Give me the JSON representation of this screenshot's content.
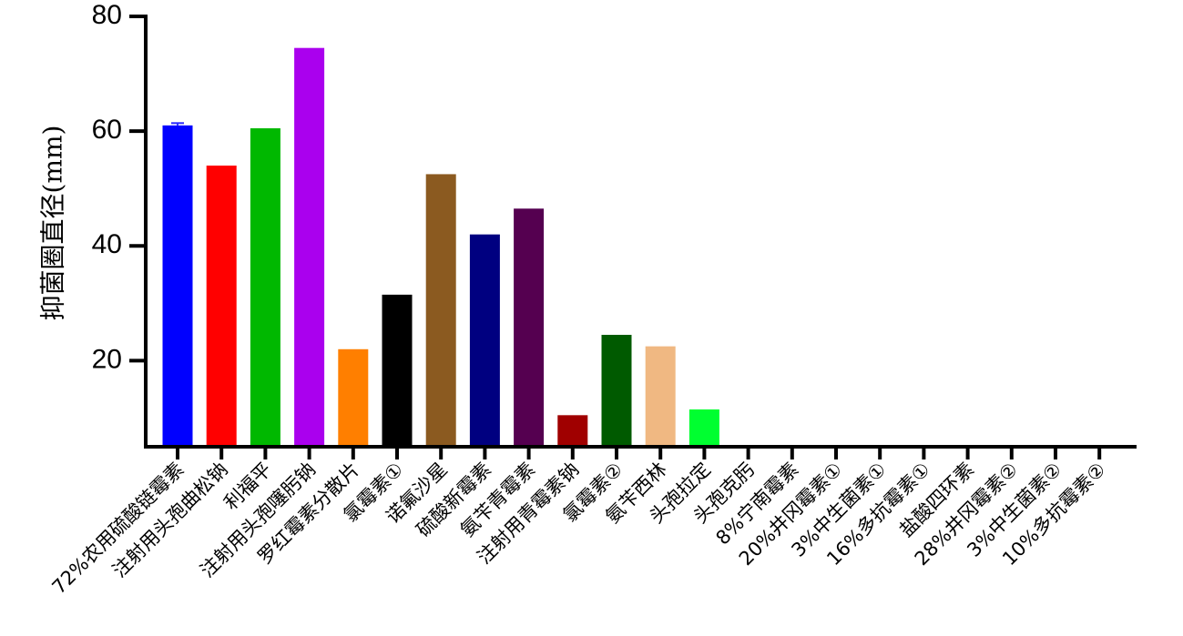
{
  "chart_data": {
    "type": "bar",
    "title": "",
    "xlabel": "",
    "ylabel": "抑菌圈直径(mm)",
    "ylim": [
      5,
      80
    ],
    "yticks": [
      20,
      40,
      60,
      80
    ],
    "grid": false,
    "legend": "none",
    "categories": [
      "72%农用硫酸链霉素",
      "注射用头孢曲松钠",
      "利福平",
      "注射用头孢噻肟钠",
      "罗红霉素分散片",
      "氯霉素①",
      "诺氟沙星",
      "硫酸新霉素",
      "氨苄青霉素",
      "注射用青霉素钠",
      "氯霉素②",
      "氨苄西林",
      "头孢拉定",
      "头孢克肟",
      "8%宁南霉素",
      "20%井冈霉素①",
      "3%中生菌素①",
      "16%多抗霉素①",
      "盐酸四环素",
      "28%井冈霉素②",
      "3%中生菌素②",
      "10%多抗霉素②"
    ],
    "values": [
      61.0,
      54.0,
      60.5,
      74.5,
      22.0,
      31.5,
      52.5,
      42.0,
      46.5,
      10.5,
      24.5,
      22.5,
      11.5,
      0,
      0,
      0,
      0,
      0,
      0,
      0,
      0,
      0
    ],
    "error": [
      0.4,
      0,
      0,
      0,
      0,
      0,
      0,
      0,
      0,
      0,
      0,
      0,
      0,
      0,
      0,
      0,
      0,
      0,
      0,
      0,
      0,
      0
    ],
    "colors": [
      "#0000ff",
      "#ff0000",
      "#00b800",
      "#aa00ee",
      "#ff7f00",
      "#000000",
      "#8b5a20",
      "#000080",
      "#550050",
      "#a00000",
      "#005a00",
      "#f0b882",
      "#00ff30",
      "#ffffff",
      "#ffffff",
      "#ffffff",
      "#ffffff",
      "#ffffff",
      "#ffffff",
      "#ffffff",
      "#ffffff",
      "#ffffff"
    ]
  }
}
